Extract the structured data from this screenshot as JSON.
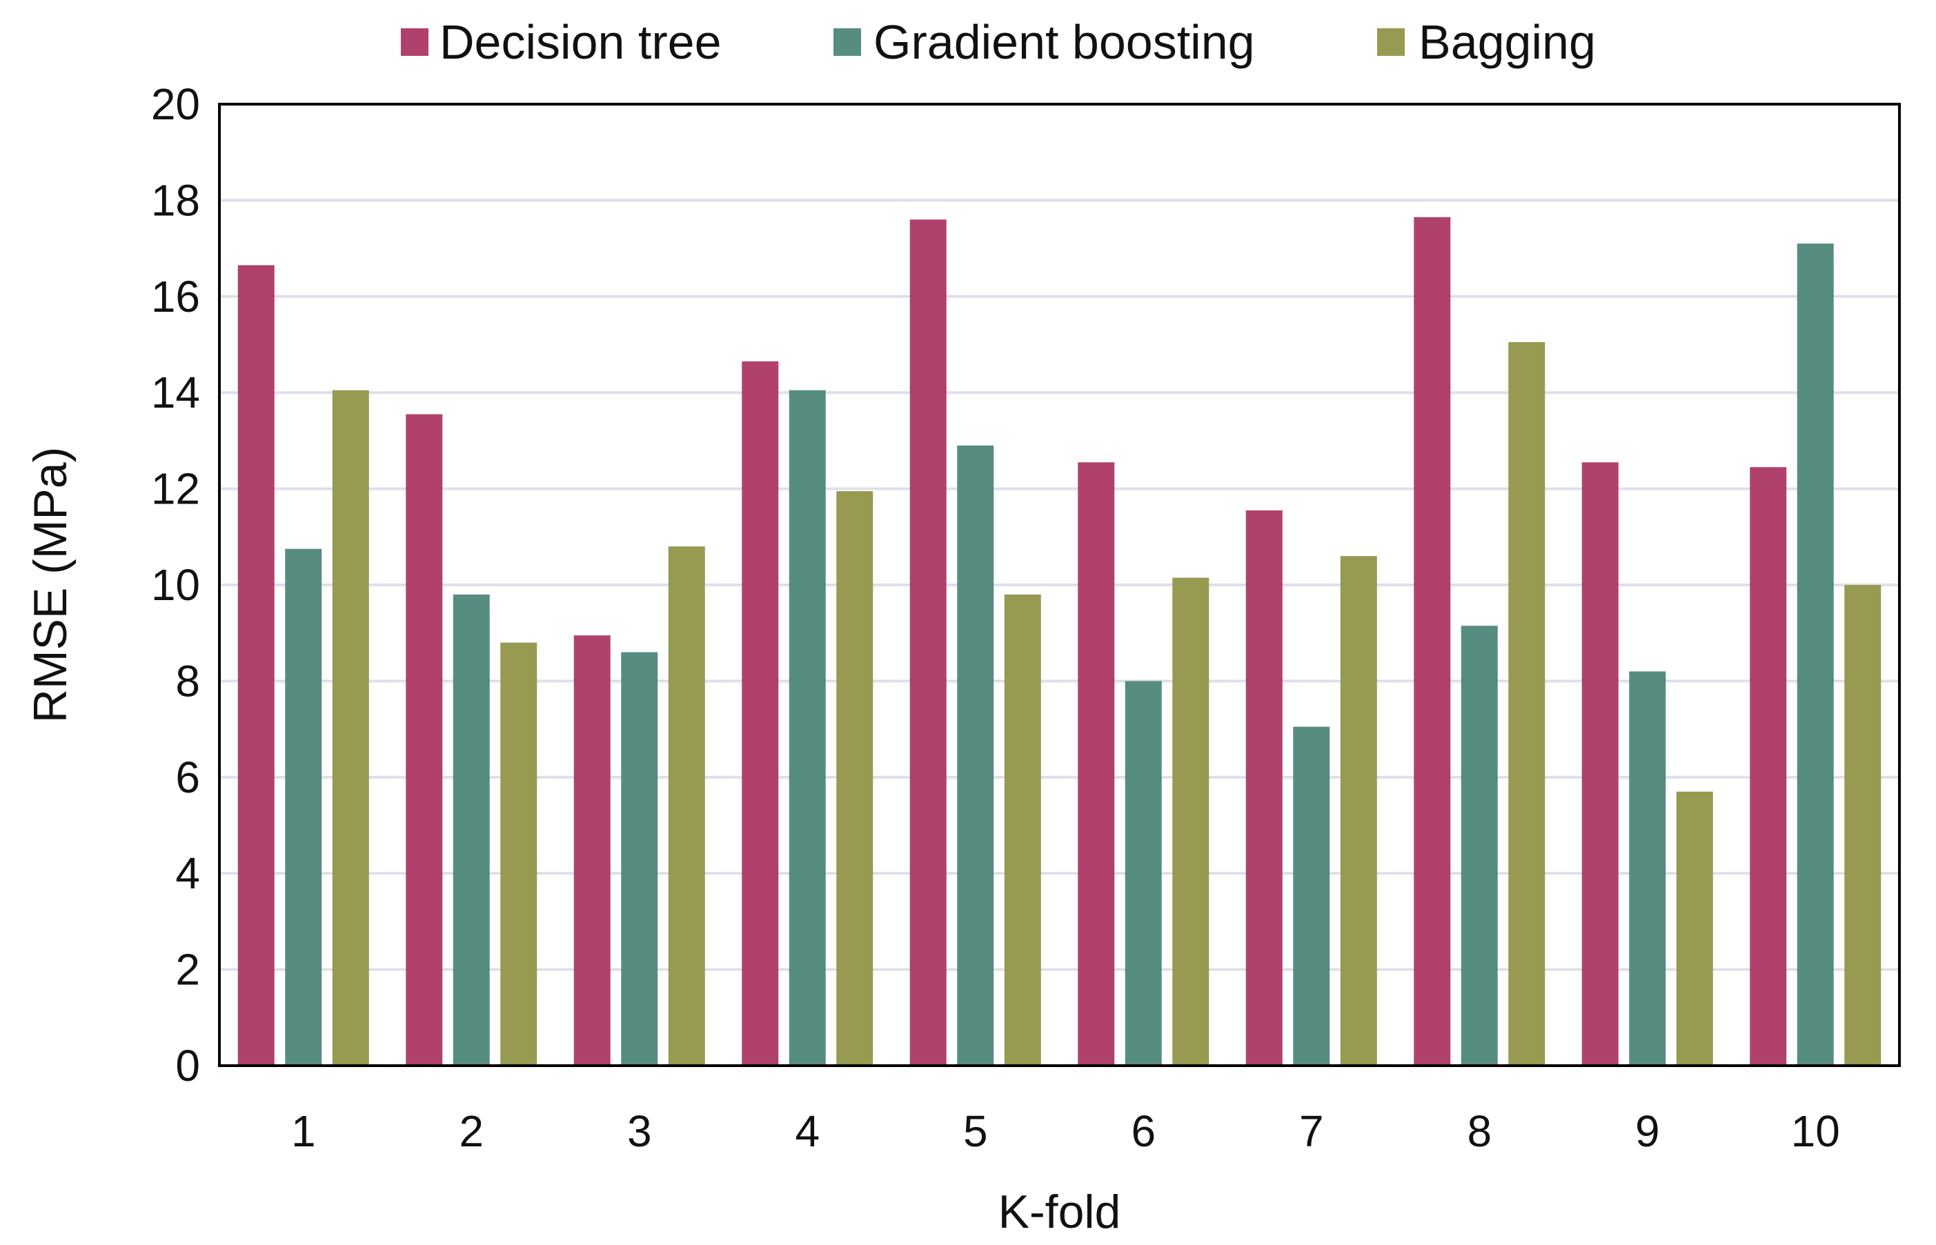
{
  "chart_data": {
    "type": "bar",
    "categories": [
      "1",
      "2",
      "3",
      "4",
      "5",
      "6",
      "7",
      "8",
      "9",
      "10"
    ],
    "series": [
      {
        "name": "Decision tree",
        "color": "#b0416d",
        "values": [
          16.65,
          13.55,
          8.95,
          14.65,
          17.6,
          12.55,
          11.55,
          17.65,
          12.55,
          12.45
        ]
      },
      {
        "name": "Gradient boosting",
        "color": "#568d80",
        "values": [
          10.75,
          9.8,
          8.6,
          14.05,
          12.9,
          8.0,
          7.05,
          9.15,
          8.2,
          17.1
        ]
      },
      {
        "name": "Bagging",
        "color": "#979a51",
        "values": [
          14.05,
          8.8,
          10.8,
          11.95,
          9.8,
          10.15,
          10.6,
          15.05,
          5.7,
          10.0
        ]
      }
    ],
    "xlabel": "K-fold",
    "ylabel": "RMSE (MPa)",
    "ylim": [
      0,
      20
    ],
    "yticks": [
      0,
      2,
      4,
      6,
      8,
      10,
      12,
      14,
      16,
      18,
      20
    ],
    "grid": true,
    "legend_position": "top"
  }
}
